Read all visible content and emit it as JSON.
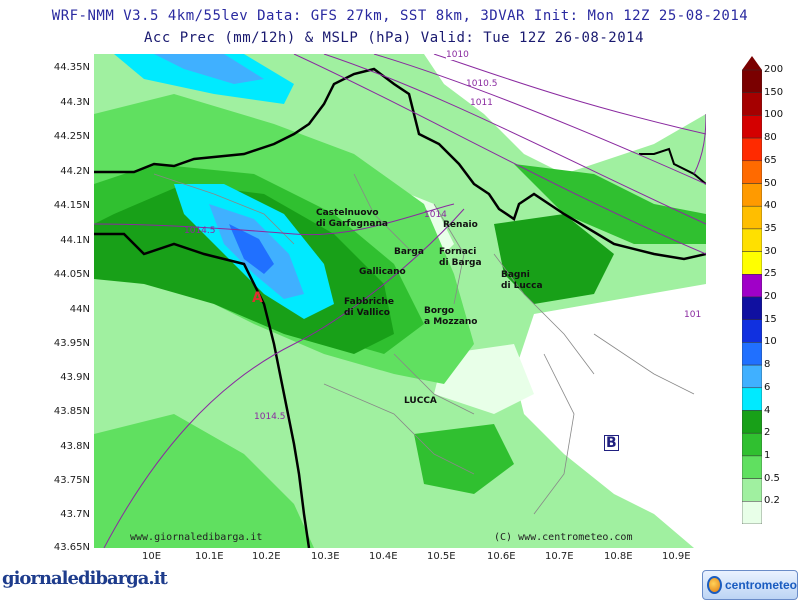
{
  "header": {
    "line1": "WRF-NMM V3.5 4km/55lev  Data: GFS 27km, SST 8km, 3DVAR  Init: Mon 12Z 25-08-2014",
    "line2": "Acc Prec (mm/12h) & MSLP (hPa)  Valid: Tue 12Z 26-08-2014"
  },
  "axes": {
    "lat_labels": [
      "44.35N",
      "44.3N",
      "44.25N",
      "44.2N",
      "44.15N",
      "44.1N",
      "44.05N",
      "44N",
      "43.95N",
      "43.9N",
      "43.85N",
      "43.8N",
      "43.75N",
      "43.7N",
      "43.65N"
    ],
    "lon_labels": [
      "10E",
      "10.1E",
      "10.2E",
      "10.3E",
      "10.4E",
      "10.5E",
      "10.6E",
      "10.7E",
      "10.8E",
      "10.9E"
    ]
  },
  "places": [
    {
      "name": "Castelnuovo\ndi Garfagnana"
    },
    {
      "name": "Renaio"
    },
    {
      "name": "Barga"
    },
    {
      "name": "Fornaci\ndi Barga"
    },
    {
      "name": "Gallicano"
    },
    {
      "name": "Bagni\ndi Lucca"
    },
    {
      "name": "Fabbriche\ndi Vallico"
    },
    {
      "name": "Borgo\na Mozzano"
    },
    {
      "name": "LUCCA"
    }
  ],
  "isobars": [
    "1010",
    "1010.5",
    "1011",
    "1014",
    "1014.5",
    "1014.5",
    "101"
  ],
  "markers": {
    "high": "A",
    "low": "B"
  },
  "watermarks": {
    "left": "www.giornaledibarga.it",
    "right": "(C) www.centrometeo.com"
  },
  "legend": {
    "labels": [
      "200",
      "150",
      "100",
      "80",
      "65",
      "50",
      "40",
      "35",
      "30",
      "25",
      "20",
      "15",
      "10",
      "8",
      "6",
      "4",
      "2",
      "1",
      "0.5",
      "0.2"
    ],
    "colors": [
      "#7a0000",
      "#a50000",
      "#d40000",
      "#ff2a00",
      "#ff6a00",
      "#ff9a00",
      "#ffbe00",
      "#ffe000",
      "#ffff00",
      "#a000c8",
      "#1010a0",
      "#1030e0",
      "#2070ff",
      "#40b0ff",
      "#00eaff",
      "#18a018",
      "#30c030",
      "#60e060",
      "#a0f0a0",
      "#e8ffe8"
    ]
  },
  "branding": {
    "left": "giornaledibarga.it",
    "right": "centrometeo"
  }
}
